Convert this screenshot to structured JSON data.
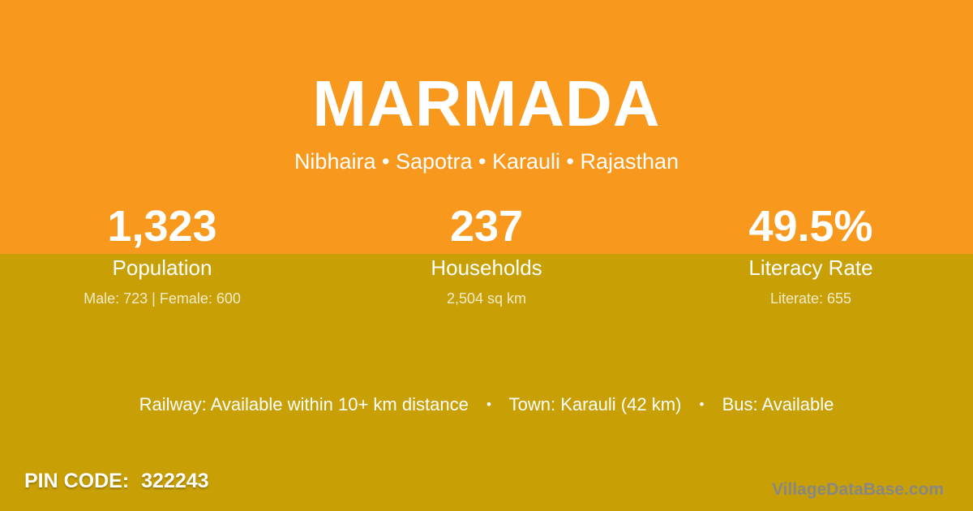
{
  "card": {
    "title": "MARMADA",
    "subtitle": "Nibhaira • Sapotra • Karauli • Rajasthan"
  },
  "stats": [
    {
      "value": "1,323",
      "label": "Population",
      "sub": "Male: 723 | Female: 600"
    },
    {
      "value": "237",
      "label": "Households",
      "sub": "2,504 sq km"
    },
    {
      "value": "49.5%",
      "label": "Literacy Rate",
      "sub": "Literate: 655"
    }
  ],
  "transport": {
    "railway": "Railway: Available within 10+ km distance",
    "town": "Town: Karauli (42 km)",
    "bus": "Bus: Available",
    "separator": "•"
  },
  "footer": {
    "pin_label": "PIN CODE:",
    "pin_value": "322243",
    "watermark": "VillageDataBase.com"
  },
  "colors": {
    "top_background": "#F8981D",
    "bottom_background": "#C8A005",
    "text": "#FFFFFF",
    "muted_text": "rgba(255,255,255,0.78)",
    "watermark_text": "#878787"
  }
}
